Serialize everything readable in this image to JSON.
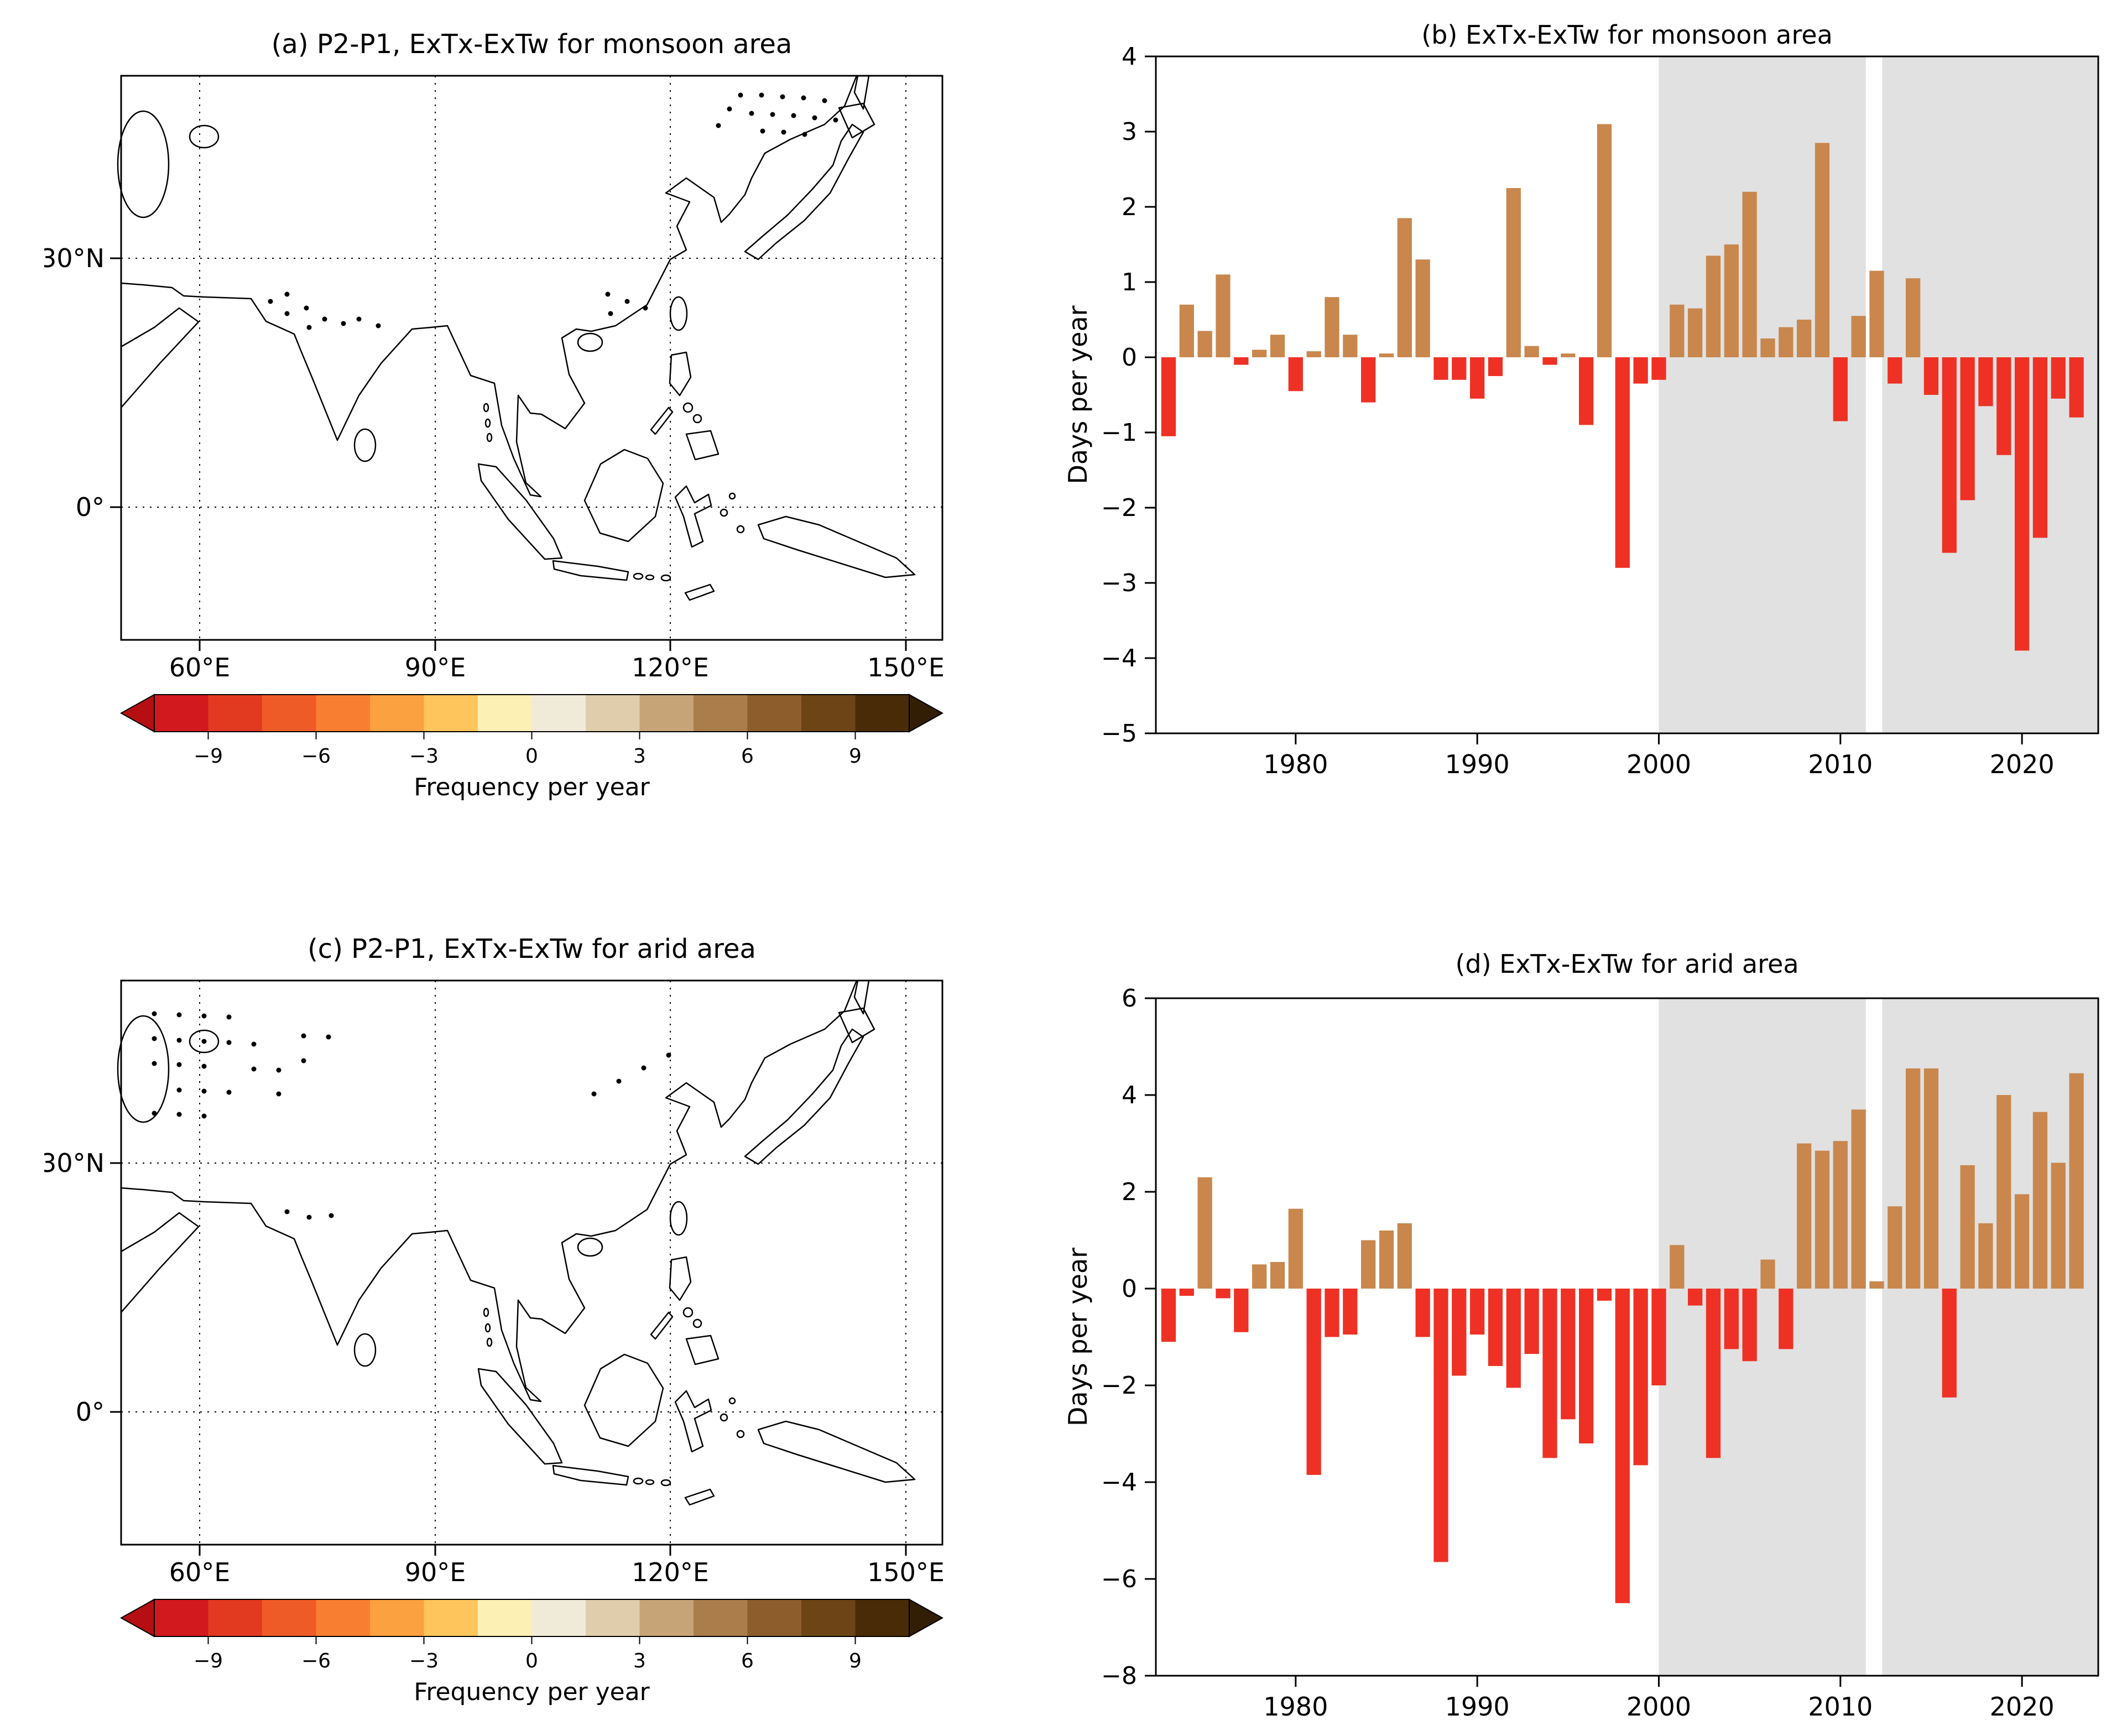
{
  "maps": {
    "a": {
      "title": "(a) P2-P1, ExTx-ExTw for monsoon area",
      "xticks": [
        "60°E",
        "90°E",
        "120°E",
        "150°E"
      ],
      "yticks": [
        "30°N",
        "0°"
      ],
      "colorbar": {
        "label": "Frequency per year",
        "ticks": [
          -9,
          -6,
          -3,
          0,
          3,
          6,
          9
        ],
        "range": [
          -10.5,
          10.5
        ],
        "colors": [
          "#d2191d",
          "#e23a21",
          "#ef5b27",
          "#f87e31",
          "#fca13f",
          "#fdc55c",
          "#fcf0b4",
          "#f0ead8",
          "#e0cdab",
          "#c7a478",
          "#ab7d4b",
          "#8d5d2c",
          "#6c4415",
          "#4a2b07"
        ],
        "left_arrow": "#b50f13",
        "right_arrow": "#321d05"
      }
    },
    "c": {
      "title": "(c) P2-P1, ExTx-ExTw for arid area",
      "xticks": [
        "60°E",
        "90°E",
        "120°E",
        "150°E"
      ],
      "yticks": [
        "30°N",
        "0°"
      ],
      "colorbar": {
        "label": "Frequency per year",
        "ticks": [
          -9,
          -6,
          -3,
          0,
          3,
          6,
          9
        ],
        "range": [
          -10.5,
          10.5
        ],
        "colors": [
          "#d2191d",
          "#e23a21",
          "#ef5b27",
          "#f87e31",
          "#fca13f",
          "#fdc55c",
          "#fcf0b4",
          "#f0ead8",
          "#e0cdab",
          "#c7a478",
          "#ab7d4b",
          "#8d5d2c",
          "#6c4415",
          "#4a2b07"
        ],
        "left_arrow": "#b50f13",
        "right_arrow": "#321d05"
      }
    }
  },
  "chart_data": [
    {
      "id": "b",
      "type": "bar",
      "title": "(b) ExTx-ExTw for monsoon area",
      "ylabel": "Days per year",
      "ylim": [
        -5,
        4
      ],
      "ytick_step": 1,
      "xlim": [
        1972.3,
        2024.2
      ],
      "xticks": [
        1980,
        1990,
        2000,
        2010,
        2020
      ],
      "start_year": 1973,
      "values": [
        -1.05,
        0.7,
        0.35,
        1.1,
        -0.1,
        0.1,
        0.3,
        -0.45,
        0.08,
        0.8,
        0.3,
        -0.6,
        0.05,
        1.85,
        1.3,
        -0.3,
        -0.3,
        -0.55,
        -0.25,
        2.25,
        0.15,
        -0.1,
        0.05,
        -0.9,
        3.1,
        -2.8,
        -0.35,
        -0.3,
        0.7,
        0.65,
        1.35,
        1.5,
        2.2,
        0.25,
        0.4,
        0.5,
        2.85,
        -0.85,
        0.55,
        1.15,
        -0.35,
        1.05,
        -0.5,
        -2.6,
        -1.9,
        -0.65,
        -1.3,
        -3.9,
        -2.4,
        -0.55,
        -0.8
      ],
      "colors": {
        "positive": "#c9874d",
        "negative": "#ee3124"
      },
      "shaded_spans": [
        [
          2000,
          2011.4
        ],
        [
          2012.3,
          2024.2
        ]
      ],
      "shade_color": "#e1e1e1"
    },
    {
      "id": "d",
      "type": "bar",
      "title": "(d) ExTx-ExTw for arid area",
      "ylabel": "Days per year",
      "ylim": [
        -8,
        6
      ],
      "ytick_step": 2,
      "xlim": [
        1972.3,
        2024.2
      ],
      "xticks": [
        1980,
        1990,
        2000,
        2010,
        2020
      ],
      "start_year": 1973,
      "values": [
        -1.1,
        -0.15,
        2.3,
        -0.2,
        -0.9,
        0.5,
        0.55,
        1.65,
        -3.85,
        -1.0,
        -0.95,
        1.0,
        1.2,
        1.35,
        -1.0,
        -5.65,
        -1.8,
        -0.95,
        -1.6,
        -2.05,
        -1.35,
        -3.5,
        -2.7,
        -3.2,
        -0.25,
        -6.5,
        -3.65,
        -2.0,
        0.9,
        -0.35,
        -3.5,
        -1.25,
        -1.5,
        0.6,
        -1.25,
        3.0,
        2.85,
        3.05,
        3.7,
        0.15,
        1.7,
        4.55,
        4.55,
        -2.25,
        2.55,
        1.35,
        4.0,
        1.95,
        3.65,
        2.6,
        4.45
      ],
      "colors": {
        "positive": "#c9874d",
        "negative": "#ee3124"
      },
      "shaded_spans": [
        [
          2000,
          2011.4
        ],
        [
          2012.3,
          2024.2
        ]
      ],
      "shade_color": "#e1e1e1"
    }
  ]
}
